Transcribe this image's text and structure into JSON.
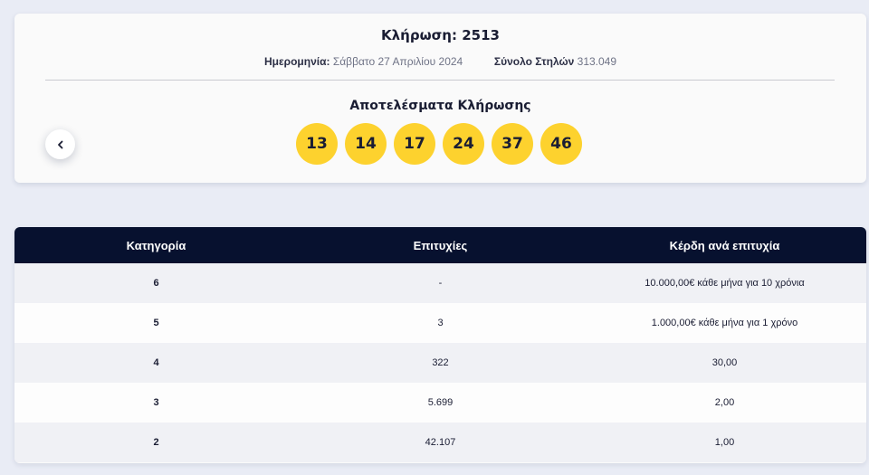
{
  "draw": {
    "title": "Κλήρωση: 2513",
    "date_label": "Ημερομηνία:",
    "date_value": "Σάββατο 27 Απριλίου 2024",
    "columns_label": "Σύνολο Στηλών",
    "columns_value": "313.049",
    "results_title": "Αποτελέσματα Κλήρωσης",
    "numbers": [
      "13",
      "14",
      "17",
      "24",
      "37",
      "46"
    ],
    "prev_icon": "chevron-left-icon"
  },
  "table": {
    "headers": [
      "Κατηγορία",
      "Επιτυχίες",
      "Κέρδη ανά επιτυχία"
    ],
    "rows": [
      [
        "6",
        "-",
        "10.000,00€ κάθε μήνα για 10 χρόνια"
      ],
      [
        "5",
        "3",
        "1.000,00€ κάθε μήνα για 1 χρόνο"
      ],
      [
        "4",
        "322",
        "30,00"
      ],
      [
        "3",
        "5.699",
        "2,00"
      ],
      [
        "2",
        "42.107",
        "1,00"
      ]
    ]
  },
  "colors": {
    "ball": "#fdd22e",
    "header_bg": "#07112f",
    "page_bg": "#e9ecf5"
  }
}
